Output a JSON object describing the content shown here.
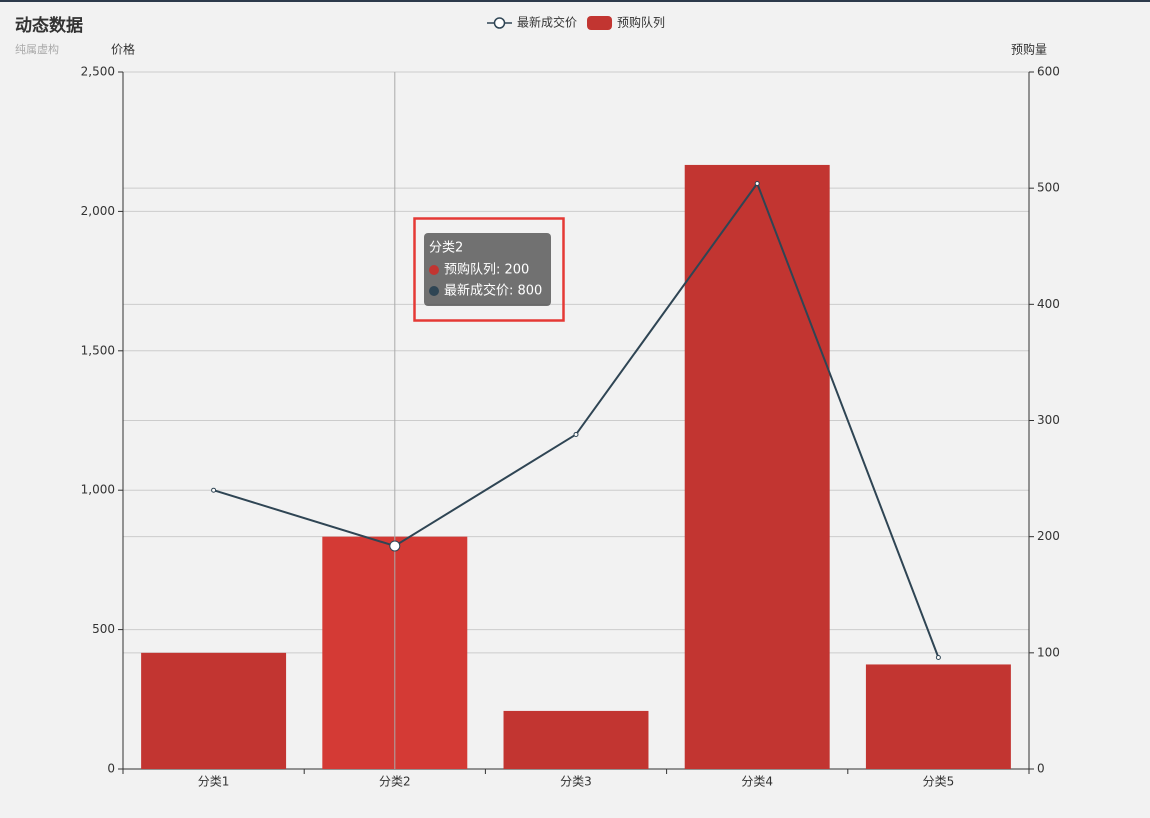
{
  "chart_data": {
    "type": "bar-line",
    "title": "动态数据",
    "subtitle": "纯属虚构",
    "categories": [
      "分类1",
      "分类2",
      "分类3",
      "分类4",
      "分类5"
    ],
    "series": [
      {
        "name": "最新成交价",
        "type": "line",
        "color": "#2f4554",
        "axis": "y",
        "values": [
          1000,
          800,
          1200,
          2100,
          400
        ]
      },
      {
        "name": "预购队列",
        "type": "bar",
        "color": "#c23531",
        "axis": "y2",
        "values": [
          100,
          200,
          50,
          520,
          90
        ]
      }
    ],
    "ylabel": "价格",
    "y2label": "预购量",
    "ylim": [
      0,
      2500
    ],
    "yticks": [
      0,
      500,
      {
        "value": 1000,
        "label": "1,000"
      },
      {
        "value": 1500,
        "label": "1,500"
      },
      {
        "value": 2000,
        "label": "2,000"
      },
      {
        "value": 2500,
        "label": "2,500"
      }
    ],
    "y2lim": [
      0,
      600
    ],
    "y2ticks": [
      0,
      100,
      200,
      300,
      400,
      500,
      600
    ],
    "grid": true,
    "legend": "top",
    "tooltip": {
      "title": "分类2",
      "lines": [
        "预购队列: 200",
        "最新成交价: 800"
      ]
    }
  }
}
